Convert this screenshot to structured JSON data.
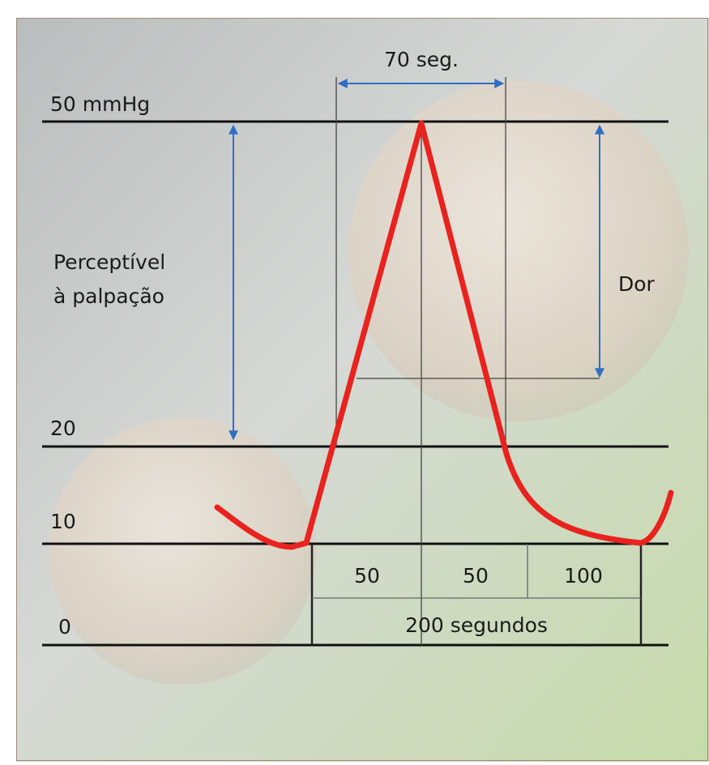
{
  "interval_label": "70 seg.",
  "pressure_levels": [
    "50 mmHg",
    "20",
    "10",
    "0"
  ],
  "left_range_label": [
    "Perceptível",
    "à palpação"
  ],
  "right_range_label": "Dor",
  "time_table": {
    "segments": [
      "50",
      "50",
      "100"
    ],
    "total": "200 segundos"
  }
}
